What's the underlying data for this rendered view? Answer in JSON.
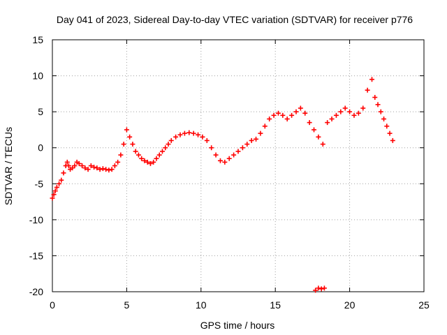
{
  "chart_data": {
    "type": "scatter",
    "title": "Day 041 of 2023, Sidereal Day-to-day VTEC variation (SDTVAR) for receiver p776",
    "xlabel": "GPS time / hours",
    "ylabel": "SDTVAR / TECUs",
    "xlim": [
      0,
      25
    ],
    "ylim": [
      -20,
      15
    ],
    "xticks": [
      0,
      5,
      10,
      15,
      20,
      25
    ],
    "yticks": [
      -20,
      -15,
      -10,
      -5,
      0,
      5,
      10,
      15
    ],
    "grid": true,
    "marker": "+",
    "series": [
      {
        "name": "SDTVAR",
        "color": "#ff0000",
        "x": [
          0.0,
          0.1,
          0.2,
          0.3,
          0.45,
          0.6,
          0.75,
          0.9,
          1.0,
          1.1,
          1.2,
          1.35,
          1.5,
          1.65,
          1.8,
          2.0,
          2.2,
          2.4,
          2.6,
          2.8,
          3.0,
          3.2,
          3.4,
          3.6,
          3.8,
          4.0,
          4.2,
          4.4,
          4.6,
          4.8,
          5.0,
          5.2,
          5.4,
          5.6,
          5.8,
          6.0,
          6.2,
          6.4,
          6.6,
          6.8,
          7.0,
          7.2,
          7.4,
          7.6,
          7.8,
          8.0,
          8.3,
          8.6,
          8.9,
          9.2,
          9.5,
          9.8,
          10.1,
          10.4,
          10.7,
          11.0,
          11.3,
          11.6,
          11.9,
          12.2,
          12.5,
          12.8,
          13.1,
          13.4,
          13.7,
          14.0,
          14.3,
          14.6,
          14.9,
          15.2,
          15.5,
          15.8,
          16.1,
          16.4,
          16.7,
          17.0,
          17.3,
          17.6,
          17.9,
          18.2,
          18.5,
          18.8,
          19.1,
          19.4,
          19.7,
          20.0,
          20.3,
          20.6,
          20.9,
          21.2,
          21.5,
          21.7,
          21.9,
          22.1,
          22.3,
          22.5,
          22.7,
          22.9,
          17.7,
          17.9,
          18.1,
          18.3
        ],
        "y": [
          -7.0,
          -6.5,
          -6.0,
          -5.5,
          -5.0,
          -4.5,
          -3.5,
          -2.5,
          -2.0,
          -2.5,
          -3.0,
          -2.8,
          -2.5,
          -2.0,
          -2.2,
          -2.5,
          -2.8,
          -3.0,
          -2.5,
          -2.7,
          -2.8,
          -3.0,
          -2.9,
          -3.0,
          -3.1,
          -3.0,
          -2.5,
          -2.0,
          -1.0,
          0.5,
          2.5,
          1.5,
          0.5,
          -0.5,
          -1.0,
          -1.5,
          -1.8,
          -2.0,
          -2.2,
          -2.0,
          -1.5,
          -1.0,
          -0.5,
          0.0,
          0.5,
          1.0,
          1.5,
          1.8,
          2.0,
          2.1,
          2.0,
          1.8,
          1.5,
          1.0,
          0.0,
          -1.0,
          -1.8,
          -2.0,
          -1.5,
          -1.0,
          -0.5,
          0.0,
          0.5,
          1.0,
          1.2,
          2.0,
          3.0,
          4.0,
          4.5,
          4.8,
          4.5,
          4.0,
          4.5,
          5.0,
          5.5,
          4.8,
          3.5,
          2.5,
          1.5,
          0.5,
          3.5,
          4.0,
          4.5,
          5.0,
          5.5,
          5.0,
          4.5,
          4.8,
          5.5,
          8.0,
          9.5,
          7.0,
          6.0,
          5.0,
          4.0,
          3.0,
          2.0,
          1.0,
          -19.8,
          -19.5,
          -19.6,
          -19.5
        ]
      }
    ]
  }
}
